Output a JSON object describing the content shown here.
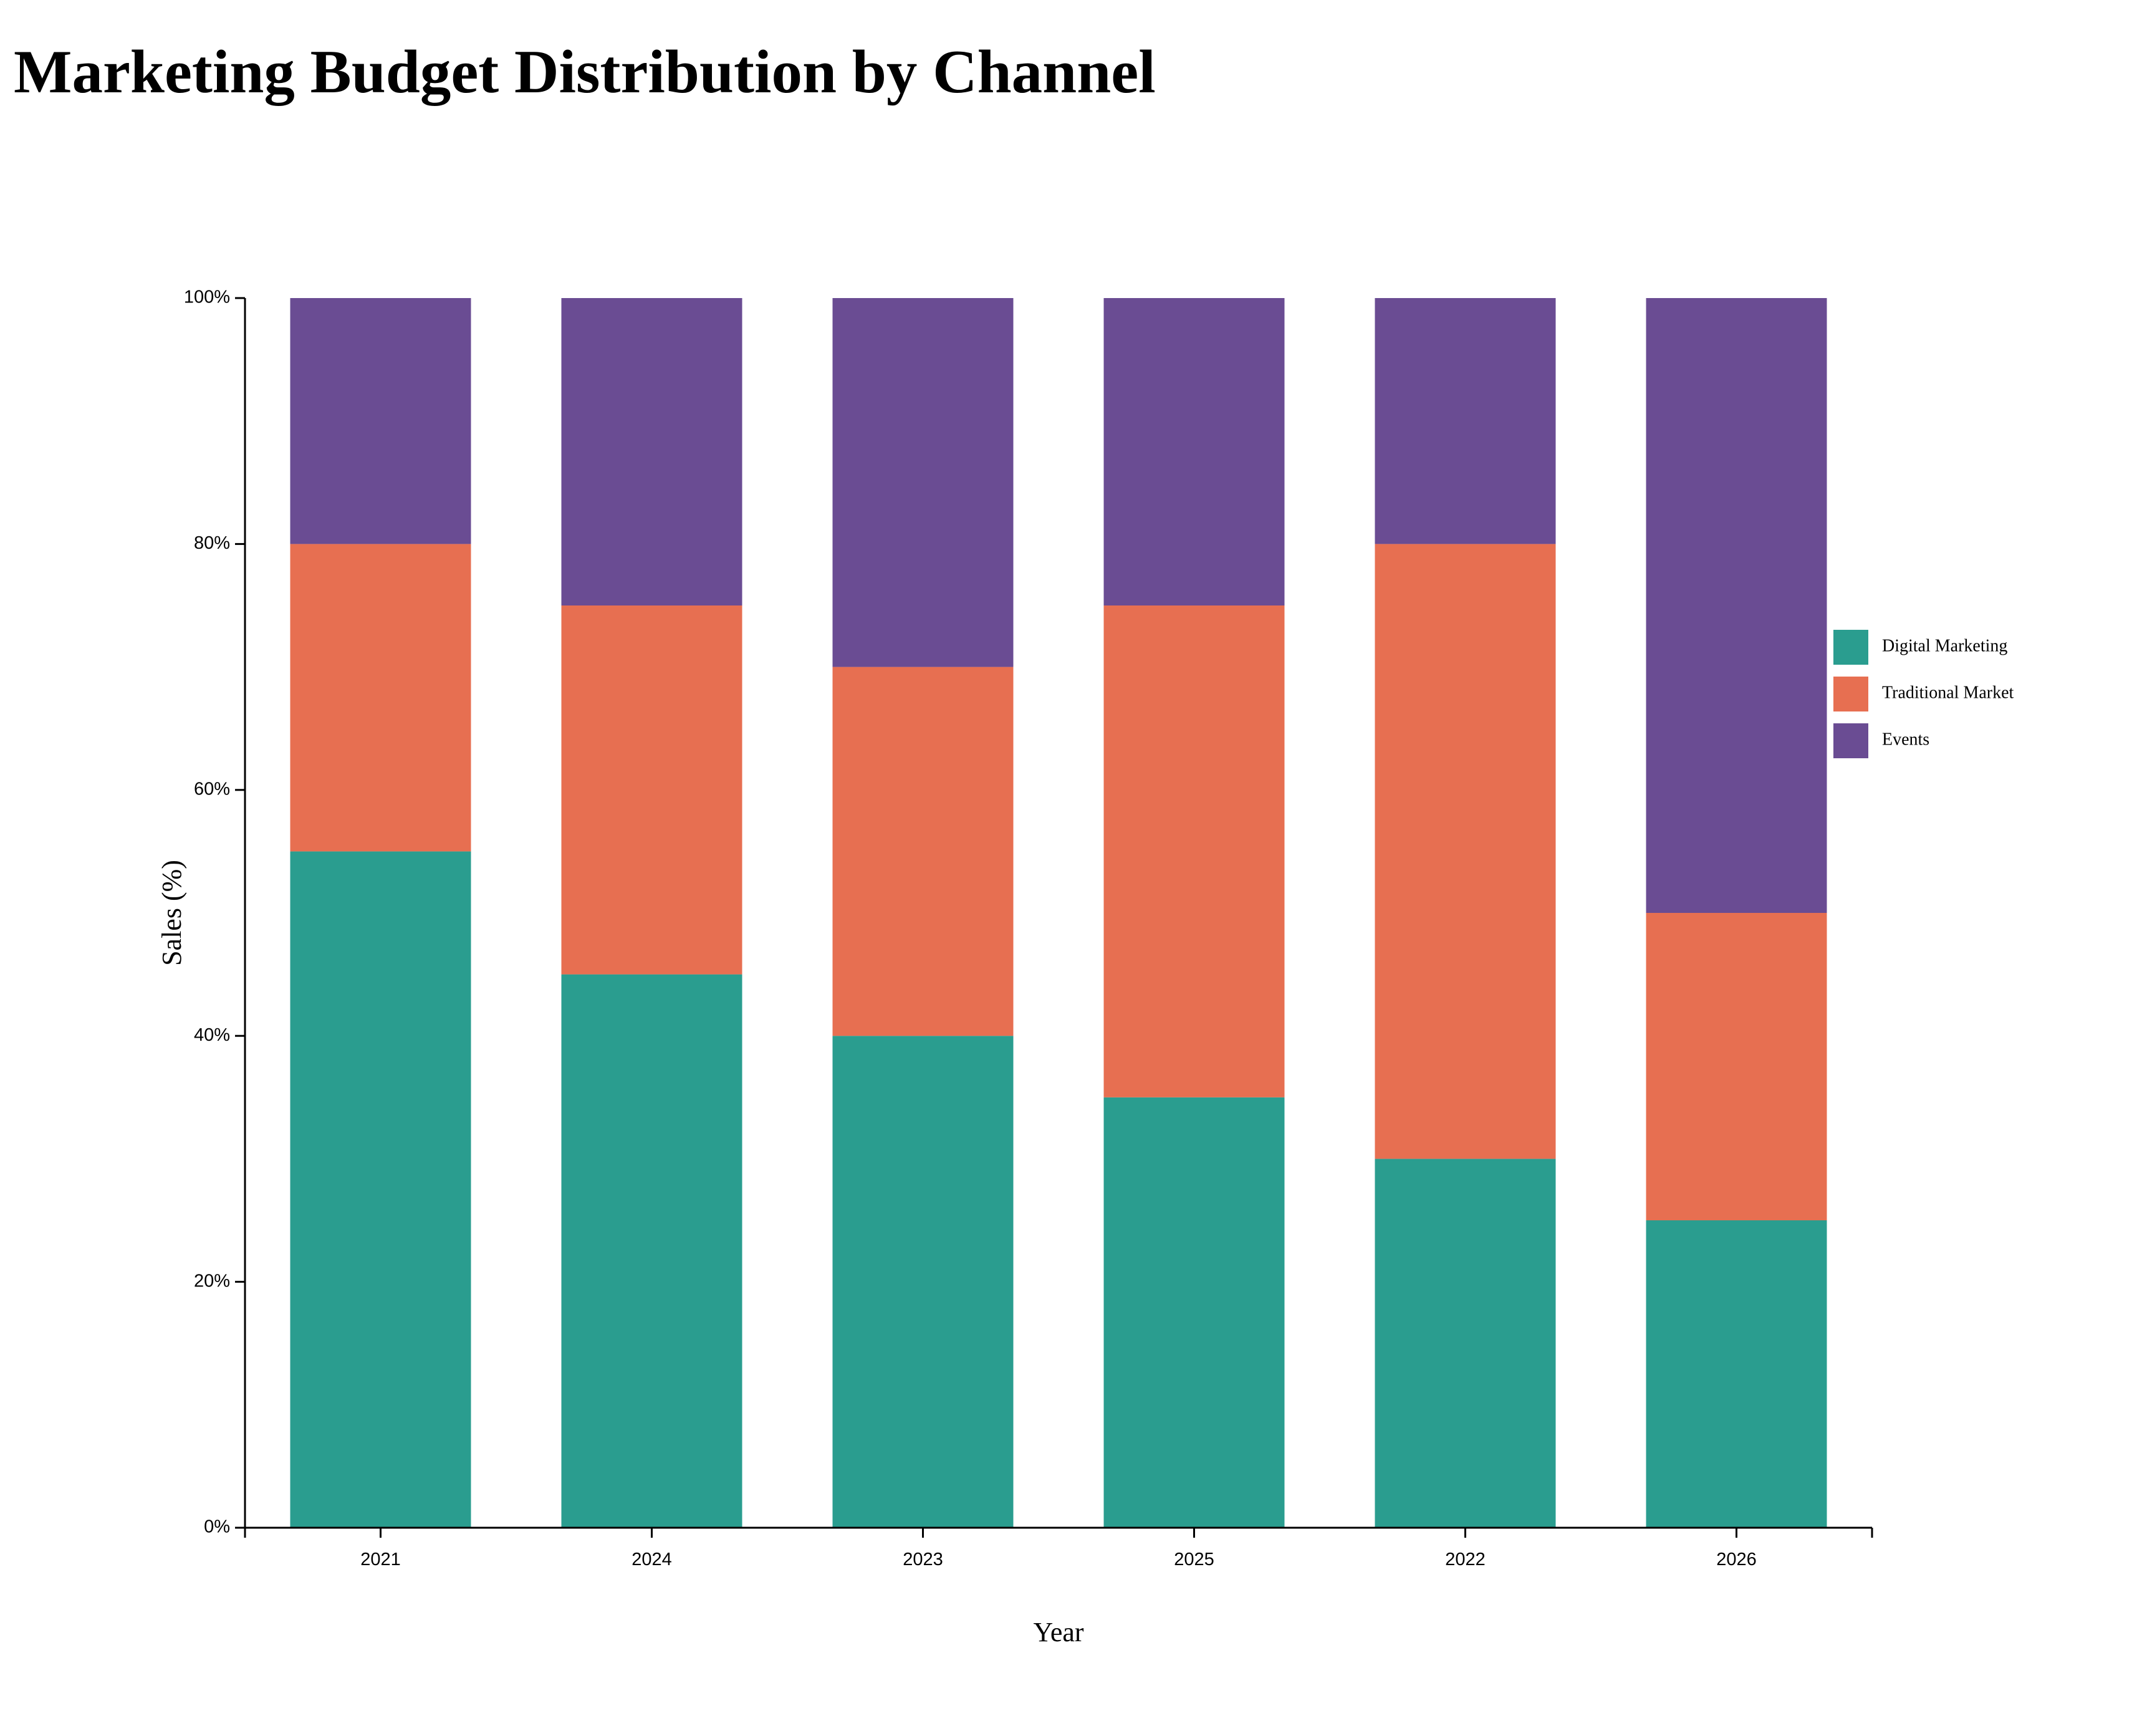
{
  "chart_data": {
    "type": "bar",
    "stacked": true,
    "normalized": true,
    "title": "Marketing Budget Distribution by Channel",
    "xlabel": "Year",
    "ylabel": "Sales (%)",
    "categories": [
      "2021",
      "2024",
      "2023",
      "2025",
      "2022",
      "2026"
    ],
    "series": [
      {
        "name": "Digital Marketing",
        "color": "#2a9d8f",
        "values": [
          55,
          45,
          40,
          35,
          30,
          25
        ]
      },
      {
        "name": "Traditional Market",
        "color": "#e76f51",
        "values": [
          25,
          30,
          30,
          40,
          50,
          25
        ]
      },
      {
        "name": "Events",
        "color": "#6a4c93",
        "values": [
          20,
          25,
          30,
          25,
          20,
          50
        ]
      }
    ],
    "ylim": [
      0,
      100
    ],
    "yticks": [
      "0%",
      "20%",
      "40%",
      "60%",
      "80%",
      "100%"
    ],
    "legend_position": "right",
    "grid": false
  }
}
